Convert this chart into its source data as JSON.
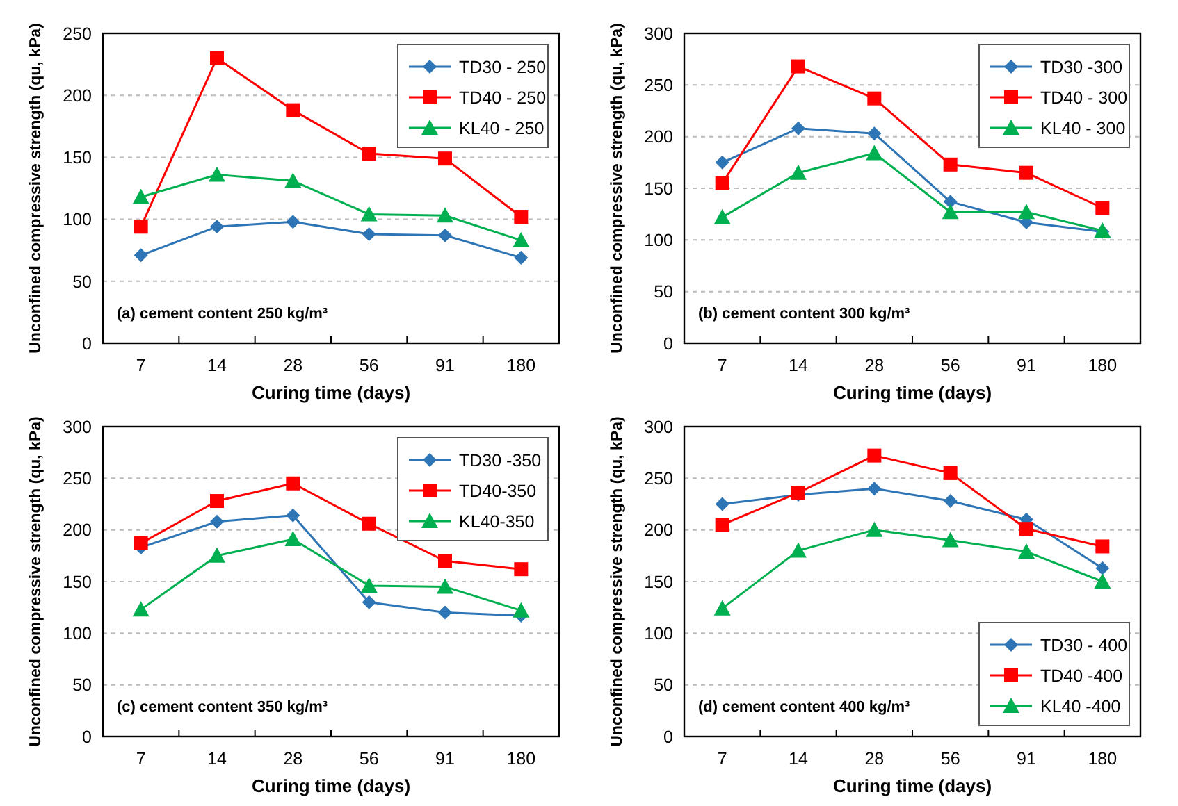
{
  "chart_data": [
    {
      "type": "line",
      "xlabel": "Curing time (days)",
      "ylabel": "Unconfined compressive strength (qu, kPa)",
      "categories": [
        "7",
        "14",
        "28",
        "56",
        "91",
        "180"
      ],
      "ylim": [
        0,
        250
      ],
      "yticks": [
        0,
        50,
        100,
        150,
        200,
        250
      ],
      "grid": "y",
      "legend": "top right",
      "annotations": [
        "(a) cement content 250 kg/m³"
      ],
      "series": [
        {
          "name": "TD30 - 250",
          "color": "#2e75b6",
          "marker": "diamond",
          "values": [
            71,
            94,
            98,
            88,
            87,
            69
          ]
        },
        {
          "name": "TD40 - 250",
          "color": "#ff0000",
          "marker": "square",
          "values": [
            94,
            230,
            188,
            153,
            149,
            102
          ]
        },
        {
          "name": "KL40 - 250",
          "color": "#00b050",
          "marker": "triangle",
          "values": [
            118,
            136,
            131,
            104,
            103,
            83
          ]
        }
      ]
    },
    {
      "type": "line",
      "xlabel": "Curing time (days)",
      "ylabel": "Unconfined compressive strength (qu, kPa)",
      "categories": [
        "7",
        "14",
        "28",
        "56",
        "91",
        "180"
      ],
      "ylim": [
        0,
        300
      ],
      "yticks": [
        0,
        50,
        100,
        150,
        200,
        250,
        300
      ],
      "grid": "y",
      "legend": "top right",
      "annotations": [
        "(b) cement content 300 kg/m³"
      ],
      "series": [
        {
          "name": "TD30 -300",
          "color": "#2e75b6",
          "marker": "diamond",
          "values": [
            175,
            208,
            203,
            137,
            117,
            108
          ]
        },
        {
          "name": "TD40 - 300",
          "color": "#ff0000",
          "marker": "square",
          "values": [
            155,
            268,
            237,
            173,
            165,
            131
          ]
        },
        {
          "name": "KL40 - 300",
          "color": "#00b050",
          "marker": "triangle",
          "values": [
            122,
            165,
            184,
            127,
            127,
            109
          ]
        }
      ]
    },
    {
      "type": "line",
      "xlabel": "Curing time (days)",
      "ylabel": "Unconfined compressive strength (qu, kPa)",
      "categories": [
        "7",
        "14",
        "28",
        "56",
        "91",
        "180"
      ],
      "ylim": [
        0,
        300
      ],
      "yticks": [
        0,
        50,
        100,
        150,
        200,
        250,
        300
      ],
      "grid": "y",
      "legend": "top right",
      "annotations": [
        "(c) cement content 350 kg/m³"
      ],
      "series": [
        {
          "name": "TD30 -350",
          "color": "#2e75b6",
          "marker": "diamond",
          "values": [
            183,
            208,
            214,
            130,
            120,
            117
          ]
        },
        {
          "name": "TD40-350",
          "color": "#ff0000",
          "marker": "square",
          "values": [
            187,
            228,
            245,
            206,
            170,
            162
          ]
        },
        {
          "name": "KL40-350",
          "color": "#00b050",
          "marker": "triangle",
          "values": [
            123,
            175,
            191,
            146,
            145,
            122
          ]
        }
      ]
    },
    {
      "type": "line",
      "xlabel": "Curing time (days)",
      "ylabel": "Unconfined compressive strength (qu, kPa)",
      "categories": [
        "7",
        "14",
        "28",
        "56",
        "91",
        "180"
      ],
      "ylim": [
        0,
        300
      ],
      "yticks": [
        0,
        50,
        100,
        150,
        200,
        250,
        300
      ],
      "grid": "y",
      "legend": "bottom right",
      "annotations": [
        "(d) cement content 400 kg/m³"
      ],
      "series": [
        {
          "name": "TD30 - 400",
          "color": "#2e75b6",
          "marker": "diamond",
          "values": [
            225,
            234,
            240,
            228,
            210,
            163
          ]
        },
        {
          "name": "TD40 -400",
          "color": "#ff0000",
          "marker": "square",
          "values": [
            205,
            236,
            272,
            255,
            201,
            184
          ]
        },
        {
          "name": "KL40 -400",
          "color": "#00b050",
          "marker": "triangle",
          "values": [
            124,
            180,
            200,
            190,
            179,
            150
          ]
        }
      ]
    }
  ]
}
